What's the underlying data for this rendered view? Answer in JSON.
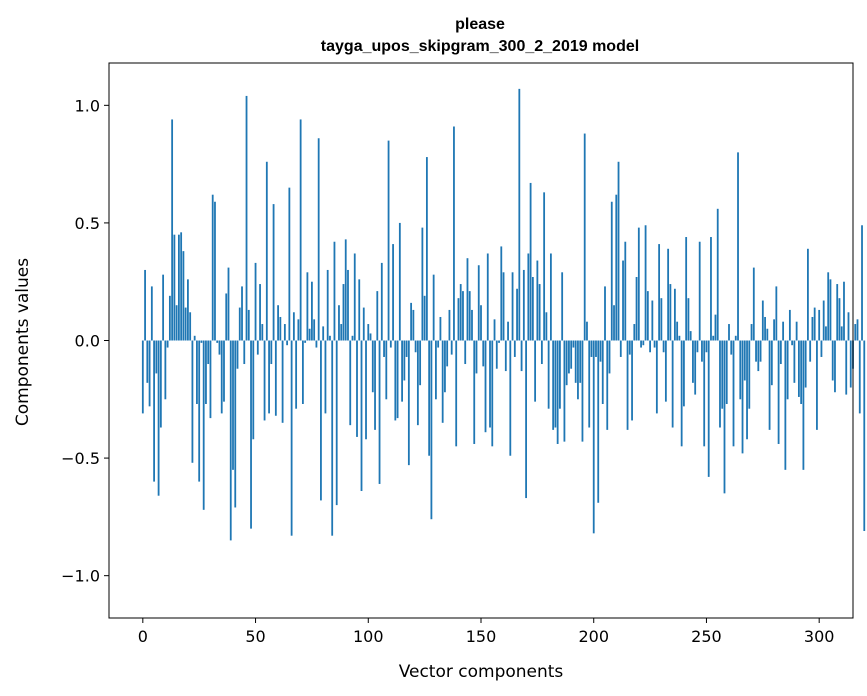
{
  "chart_data": {
    "type": "bar",
    "title": "please",
    "subtitle": "tayga_upos_skipgram_300_2_2019 model",
    "xlabel": "Vector components",
    "ylabel": "Components values",
    "xlim": [
      -15,
      315
    ],
    "ylim": [
      -1.18,
      1.18
    ],
    "xticks": [
      0,
      50,
      100,
      150,
      200,
      250,
      300
    ],
    "yticks": [
      -1.0,
      -0.5,
      0.0,
      0.5,
      1.0
    ],
    "ytick_labels": [
      "−1.0",
      "−0.5",
      "0.0",
      "0.5",
      "1.0"
    ],
    "bar_color": "#1f77b4",
    "grid": false,
    "values": [
      -0.31,
      0.3,
      -0.18,
      -0.28,
      0.23,
      -0.6,
      -0.14,
      -0.66,
      -0.37,
      0.28,
      -0.25,
      -0.03,
      0.19,
      0.94,
      0.45,
      0.15,
      0.45,
      0.46,
      0.38,
      0.14,
      0.26,
      0.12,
      -0.52,
      0.02,
      -0.27,
      -0.6,
      -0.01,
      -0.72,
      -0.27,
      -0.1,
      -0.33,
      0.62,
      0.59,
      -0.01,
      -0.06,
      -0.31,
      -0.26,
      0.2,
      0.31,
      -0.85,
      -0.55,
      -0.71,
      -0.12,
      0.14,
      0.23,
      -0.1,
      1.04,
      0.13,
      -0.8,
      -0.42,
      0.33,
      -0.06,
      0.24,
      0.07,
      -0.34,
      0.76,
      -0.31,
      -0.1,
      0.58,
      -0.32,
      0.15,
      0.1,
      -0.35,
      0.07,
      -0.02,
      0.65,
      -0.83,
      0.12,
      -0.29,
      0.09,
      0.94,
      -0.27,
      -0.01,
      0.29,
      0.05,
      0.25,
      0.09,
      -0.03,
      0.86,
      -0.68,
      0.06,
      -0.31,
      0.3,
      0.02,
      -0.83,
      0.42,
      -0.7,
      0.15,
      0.07,
      0.24,
      0.43,
      0.3,
      -0.36,
      0.02,
      0.37,
      -0.41,
      0.26,
      -0.64,
      0.14,
      -0.42,
      0.07,
      0.03,
      -0.22,
      -0.38,
      0.21,
      -0.61,
      0.33,
      -0.07,
      -0.25,
      0.85,
      -0.03,
      0.41,
      -0.34,
      -0.33,
      0.5,
      -0.26,
      -0.17,
      -0.07,
      -0.53,
      0.16,
      0.13,
      -0.05,
      -0.36,
      -0.19,
      0.48,
      0.19,
      0.78,
      -0.49,
      -0.76,
      0.28,
      -0.25,
      -0.03,
      0.1,
      -0.35,
      -0.22,
      -0.11,
      0.13,
      -0.06,
      0.91,
      -0.45,
      0.18,
      0.24,
      0.21,
      -0.1,
      0.35,
      0.21,
      0.13,
      -0.44,
      -0.14,
      0.32,
      0.15,
      -0.11,
      -0.39,
      0.37,
      -0.37,
      -0.45,
      0.09,
      -0.12,
      -0.01,
      0.4,
      0.29,
      -0.13,
      0.08,
      -0.49,
      0.29,
      -0.07,
      0.22,
      1.07,
      -0.13,
      0.3,
      -0.67,
      0.37,
      0.67,
      0.27,
      -0.26,
      0.34,
      0.24,
      -0.1,
      0.63,
      0.12,
      -0.29,
      0.37,
      -0.38,
      -0.37,
      -0.44,
      -0.29,
      0.29,
      -0.43,
      -0.19,
      -0.14,
      -0.12,
      -0.03,
      -0.18,
      -0.25,
      -0.18,
      -0.43,
      0.88,
      0.08,
      -0.37,
      -0.07,
      -0.82,
      -0.07,
      -0.69,
      -0.09,
      -0.27,
      0.23,
      -0.38,
      -0.14,
      0.59,
      0.15,
      0.62,
      0.76,
      -0.07,
      0.34,
      0.42,
      -0.38,
      -0.06,
      -0.34,
      0.07,
      0.27,
      0.48,
      -0.03,
      -0.02,
      0.49,
      0.21,
      -0.05,
      0.17,
      -0.03,
      -0.31,
      0.41,
      0.18,
      -0.05,
      -0.26,
      0.39,
      0.24,
      -0.37,
      0.22,
      0.08,
      0.02,
      -0.45,
      -0.28,
      0.44,
      0.18,
      0.04,
      -0.18,
      -0.23,
      -0.05,
      0.42,
      -0.09,
      -0.45,
      -0.05,
      -0.58,
      0.44,
      0.02,
      0.11,
      0.56,
      -0.37,
      -0.29,
      -0.65,
      -0.27,
      0.07,
      -0.06,
      -0.45,
      0.02,
      0.8,
      -0.25,
      -0.48,
      -0.17,
      -0.42,
      -0.29,
      0.07,
      0.31,
      -0.09,
      -0.13,
      -0.09,
      0.17,
      0.1,
      0.05,
      -0.38,
      -0.19,
      0.09,
      0.23,
      -0.44,
      -0.1,
      0.08,
      -0.55,
      -0.25,
      0.13,
      -0.02,
      -0.18,
      0.08,
      -0.24,
      -0.27,
      -0.55,
      -0.2,
      0.39,
      -0.09,
      0.1,
      0.14,
      -0.38,
      0.13,
      -0.07,
      0.17,
      0.06,
      0.29,
      0.26,
      -0.17,
      -0.22,
      0.24,
      0.18,
      0.06,
      0.25,
      -0.23,
      0.12,
      -0.2,
      -0.12,
      0.07,
      0.09,
      -0.31,
      0.49,
      -0.81
    ]
  }
}
